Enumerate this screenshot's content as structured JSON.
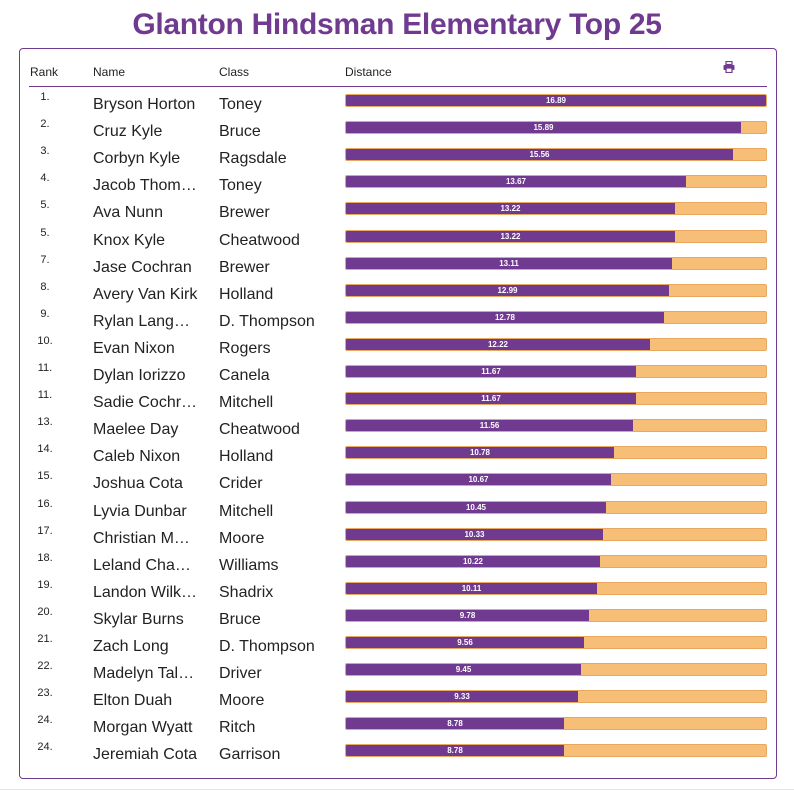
{
  "title": "Glanton Hindsman Elementary Top 25",
  "headers": {
    "rank": "Rank",
    "name": "Name",
    "class": "Class",
    "distance": "Distance"
  },
  "print_icon": "printer-icon",
  "colors": {
    "accent": "#6f3a8f",
    "bar_bg": "#f7be78"
  },
  "max_distance": 16.89,
  "rows": [
    {
      "rank": "1.",
      "name": "Bryson Horton",
      "class": "Toney",
      "distance": "16.89"
    },
    {
      "rank": "2.",
      "name": "Cruz Kyle",
      "class": "Bruce",
      "distance": "15.89"
    },
    {
      "rank": "3.",
      "name": "Corbyn Kyle",
      "class": "Ragsdale",
      "distance": "15.56"
    },
    {
      "rank": "4.",
      "name": "Jacob Thom…",
      "class": "Toney",
      "distance": "13.67"
    },
    {
      "rank": "5.",
      "name": "Ava Nunn",
      "class": "Brewer",
      "distance": "13.22"
    },
    {
      "rank": "5.",
      "name": "Knox Kyle",
      "class": "Cheatwood",
      "distance": "13.22"
    },
    {
      "rank": "7.",
      "name": "Jase Cochran",
      "class": "Brewer",
      "distance": "13.11"
    },
    {
      "rank": "8.",
      "name": "Avery Van Kirk",
      "class": "Holland",
      "distance": "12.99"
    },
    {
      "rank": "9.",
      "name": "Rylan Langeli…",
      "class": "D. Thompson",
      "distance": "12.78"
    },
    {
      "rank": "10.",
      "name": "Evan Nixon",
      "class": "Rogers",
      "distance": "12.22"
    },
    {
      "rank": "11.",
      "name": "Dylan Iorizzo",
      "class": "Canela",
      "distance": "11.67"
    },
    {
      "rank": "11.",
      "name": "Sadie Cochran",
      "class": "Mitchell",
      "distance": "11.67"
    },
    {
      "rank": "13.",
      "name": "Maelee Day",
      "class": "Cheatwood",
      "distance": "11.56"
    },
    {
      "rank": "14.",
      "name": "Caleb Nixon",
      "class": "Holland",
      "distance": "10.78"
    },
    {
      "rank": "15.",
      "name": "Joshua Cota",
      "class": "Crider",
      "distance": "10.67"
    },
    {
      "rank": "16.",
      "name": "Lyvia Dunbar",
      "class": "Mitchell",
      "distance": "10.45"
    },
    {
      "rank": "17.",
      "name": "Christian Ma…",
      "class": "Moore",
      "distance": "10.33"
    },
    {
      "rank": "18.",
      "name": "Leland Cham…",
      "class": "Williams",
      "distance": "10.22"
    },
    {
      "rank": "19.",
      "name": "Landon Wilki…",
      "class": "Shadrix",
      "distance": "10.11"
    },
    {
      "rank": "20.",
      "name": "Skylar Burns",
      "class": "Bruce",
      "distance": "9.78"
    },
    {
      "rank": "21.",
      "name": "Zach Long",
      "class": "D. Thompson",
      "distance": "9.56"
    },
    {
      "rank": "22.",
      "name": "Madelyn Tala…",
      "class": "Driver",
      "distance": "9.45"
    },
    {
      "rank": "23.",
      "name": "Elton Duah",
      "class": "Moore",
      "distance": "9.33"
    },
    {
      "rank": "24.",
      "name": "Morgan Wyatt",
      "class": "Ritch",
      "distance": "8.78"
    },
    {
      "rank": "24.",
      "name": "Jeremiah Cota",
      "class": "Garrison",
      "distance": "8.78"
    }
  ]
}
